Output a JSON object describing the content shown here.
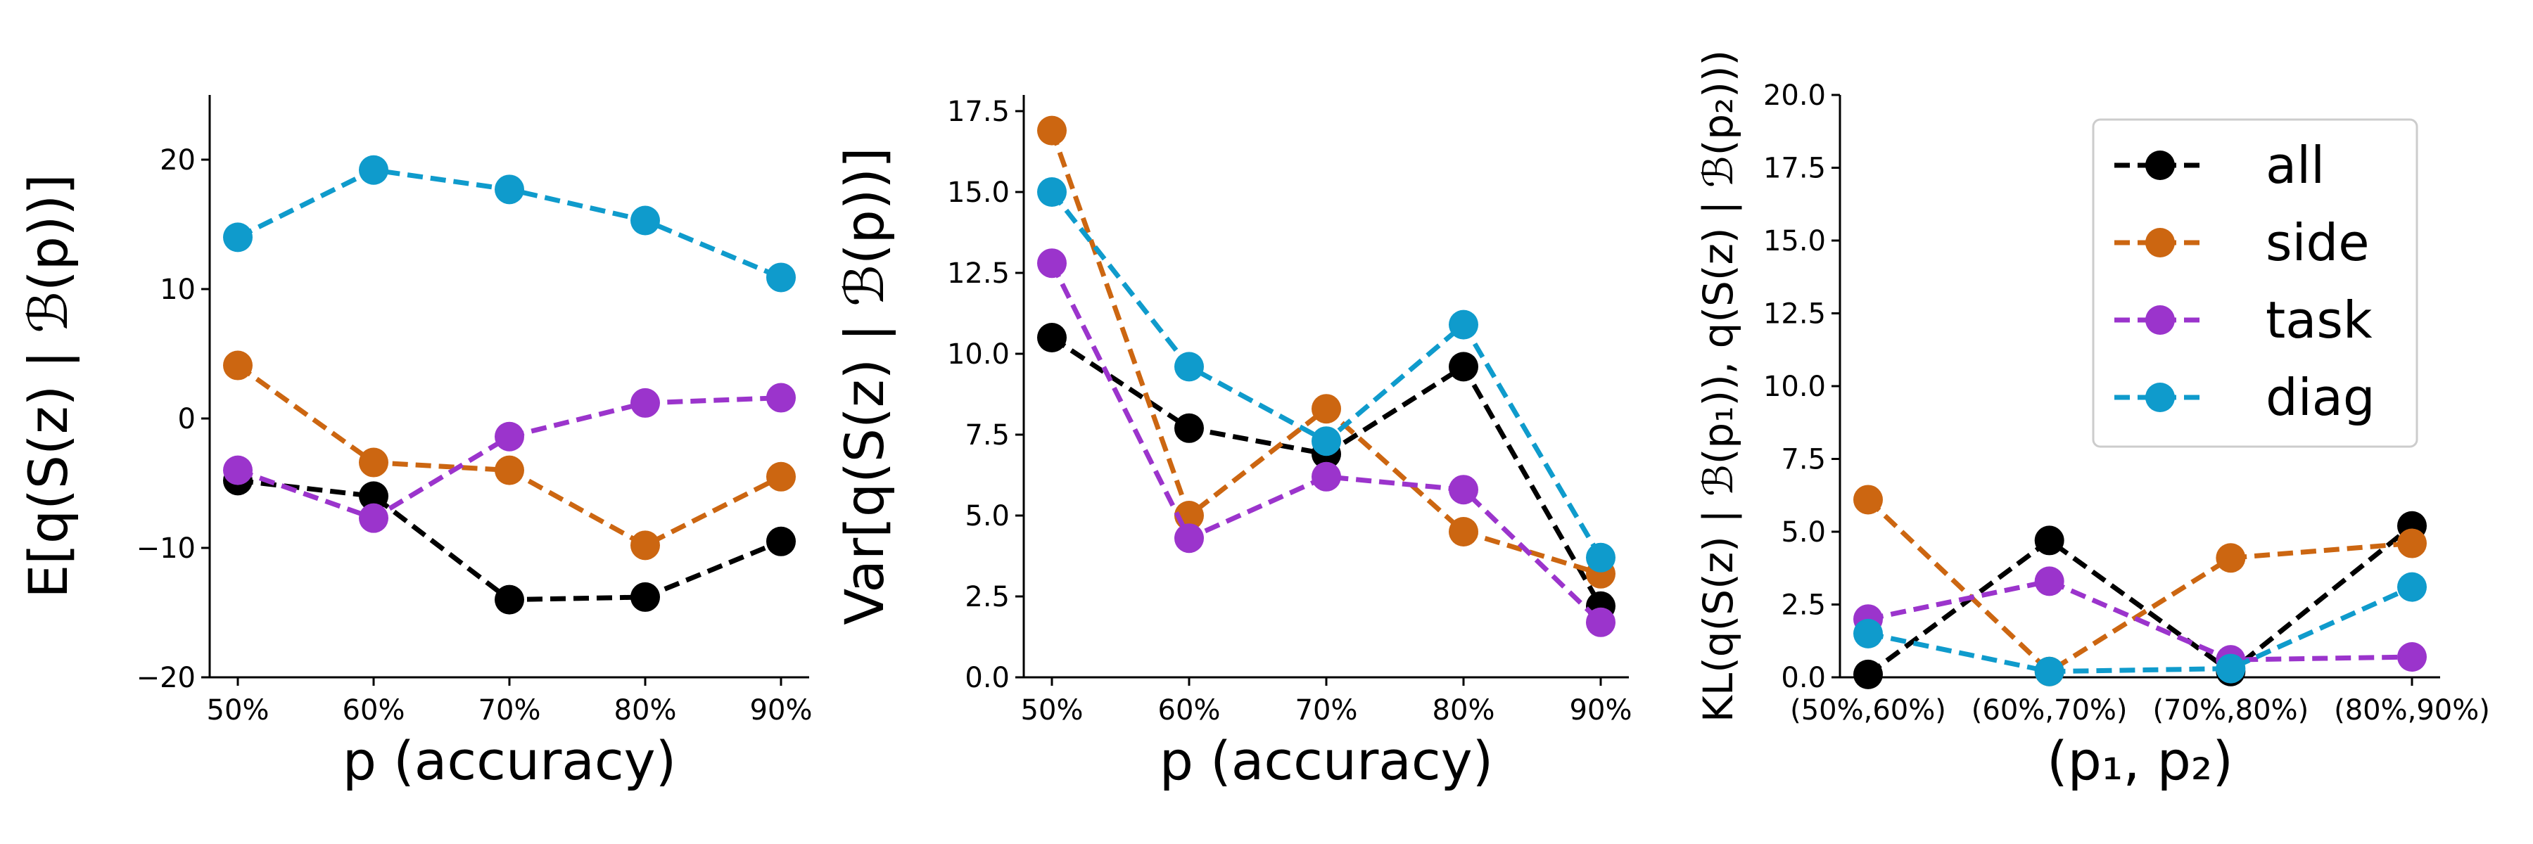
{
  "colors": {
    "all": "#000000",
    "side": "#cc6611",
    "task": "#9b34cc",
    "diag": "#0f9bcc"
  },
  "legend": {
    "placement": "upper-right of third panel",
    "entries": [
      "all",
      "side",
      "task",
      "diag"
    ]
  },
  "chart_data": [
    {
      "type": "line",
      "xlabel": "p (accuracy)",
      "ylabel": "E[q(S(z) | ℬ(p))]",
      "categories": [
        "50%",
        "60%",
        "70%",
        "80%",
        "90%"
      ],
      "ylim": [
        -20,
        25
      ],
      "yticks": [
        -20,
        -10,
        0,
        10,
        20
      ],
      "ytick_labels": [
        "−20",
        "−10",
        "0",
        "10",
        "20"
      ],
      "grid": false,
      "series": [
        {
          "name": "all",
          "values": [
            -4.8,
            -6.0,
            -14.0,
            -13.8,
            -9.5
          ]
        },
        {
          "name": "side",
          "values": [
            4.1,
            -3.4,
            -4.0,
            -9.8,
            -4.5
          ]
        },
        {
          "name": "task",
          "values": [
            -4.0,
            -7.7,
            -1.4,
            1.2,
            1.6
          ]
        },
        {
          "name": "diag",
          "values": [
            14.0,
            19.2,
            17.7,
            15.3,
            10.9
          ]
        }
      ]
    },
    {
      "type": "line",
      "xlabel": "p (accuracy)",
      "ylabel": "Var[q(S(z) | ℬ(p))]",
      "categories": [
        "50%",
        "60%",
        "70%",
        "80%",
        "90%"
      ],
      "ylim": [
        0,
        18
      ],
      "yticks": [
        0,
        2.5,
        5,
        7.5,
        10,
        12.5,
        15,
        17.5
      ],
      "ytick_labels": [
        "0.0",
        "2.5",
        "5.0",
        "7.5",
        "10.0",
        "12.5",
        "15.0",
        "17.5"
      ],
      "grid": false,
      "series": [
        {
          "name": "all",
          "values": [
            10.5,
            7.7,
            6.9,
            9.6,
            2.2
          ]
        },
        {
          "name": "side",
          "values": [
            16.9,
            5.0,
            8.3,
            4.5,
            3.2
          ]
        },
        {
          "name": "task",
          "values": [
            12.8,
            4.3,
            6.2,
            5.8,
            1.7
          ]
        },
        {
          "name": "diag",
          "values": [
            15.0,
            9.6,
            7.3,
            10.9,
            3.7
          ]
        }
      ]
    },
    {
      "type": "line",
      "xlabel": "(p₁, p₂)",
      "ylabel": "KL(q(S(z) | ℬ(p₁)), q(S(z) | ℬ(p₂)))",
      "categories": [
        "(50%,60%)",
        "(60%,70%)",
        "(70%,80%)",
        "(80%,90%)"
      ],
      "ylim": [
        0,
        20
      ],
      "yticks": [
        0,
        2.5,
        5,
        7.5,
        10,
        12.5,
        15,
        17.5,
        20
      ],
      "ytick_labels": [
        "0.0",
        "2.5",
        "5.0",
        "7.5",
        "10.0",
        "12.5",
        "15.0",
        "17.5",
        "20.0"
      ],
      "grid": false,
      "series": [
        {
          "name": "all",
          "values": [
            0.1,
            4.7,
            0.2,
            5.2
          ]
        },
        {
          "name": "side",
          "values": [
            6.1,
            0.2,
            4.1,
            4.6
          ]
        },
        {
          "name": "task",
          "values": [
            2.0,
            3.3,
            0.6,
            0.7
          ]
        },
        {
          "name": "diag",
          "values": [
            1.5,
            0.2,
            0.3,
            3.1
          ]
        }
      ]
    }
  ]
}
